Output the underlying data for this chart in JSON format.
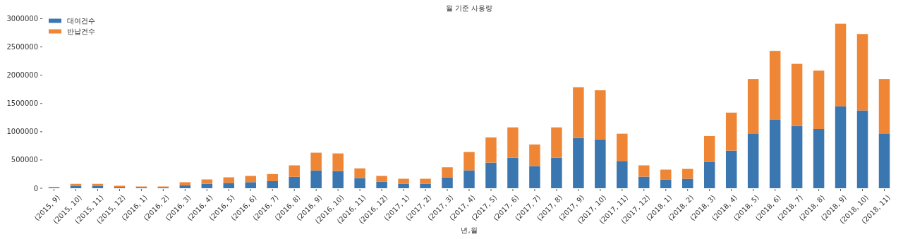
{
  "chart_data": {
    "type": "bar",
    "title": "월 기준 사용량",
    "xlabel": "년,월",
    "stacked": true,
    "legend": "top left",
    "grid": false,
    "categories": [
      "(2015, 9)",
      "(2015, 10)",
      "(2015, 11)",
      "(2015, 12)",
      "(2016, 1)",
      "(2016, 2)",
      "(2016, 3)",
      "(2016, 4)",
      "(2016, 5)",
      "(2016, 6)",
      "(2016, 7)",
      "(2016, 8)",
      "(2016, 9)",
      "(2016, 10)",
      "(2016, 11)",
      "(2016, 12)",
      "(2017, 1)",
      "(2017, 2)",
      "(2017, 3)",
      "(2017, 4)",
      "(2017, 5)",
      "(2017, 6)",
      "(2017, 7)",
      "(2017, 8)",
      "(2017, 9)",
      "(2017, 10)",
      "(2017, 11)",
      "(2017, 12)",
      "(2018, 1)",
      "(2018, 2)",
      "(2018, 3)",
      "(2018, 4)",
      "(2018, 5)",
      "(2018, 6)",
      "(2018, 7)",
      "(2018, 8)",
      "(2018, 9)",
      "(2018, 10)",
      "(2018, 11)"
    ],
    "series": [
      {
        "name": "대여건수",
        "color": "#3a76af",
        "values": [
          10000,
          38000,
          38000,
          22000,
          15000,
          15000,
          52000,
          78000,
          95000,
          108000,
          125000,
          203000,
          315000,
          305000,
          180000,
          118000,
          81000,
          81000,
          193000,
          317000,
          454000,
          542000,
          392000,
          542000,
          890000,
          865000,
          483000,
          205000,
          156000,
          168000,
          463000,
          666000,
          969000,
          1218000,
          1102000,
          1048000,
          1450000,
          1376000,
          969000
        ]
      },
      {
        "name": "반납건수",
        "color": "#ef8636",
        "values": [
          15000,
          40000,
          40000,
          22000,
          16000,
          16000,
          54000,
          78000,
          98000,
          110000,
          126000,
          202000,
          314000,
          311000,
          171000,
          100000,
          87000,
          87000,
          178000,
          324000,
          445000,
          535000,
          382000,
          535000,
          897000,
          868000,
          482000,
          200000,
          174000,
          174000,
          461000,
          672000,
          963000,
          1212000,
          1099000,
          1034000,
          1461000,
          1353000,
          963000
        ]
      }
    ],
    "ylim": [
      0,
      3000000
    ],
    "yticks": [
      0,
      500000,
      1000000,
      1500000,
      2000000,
      2500000,
      3000000
    ]
  }
}
